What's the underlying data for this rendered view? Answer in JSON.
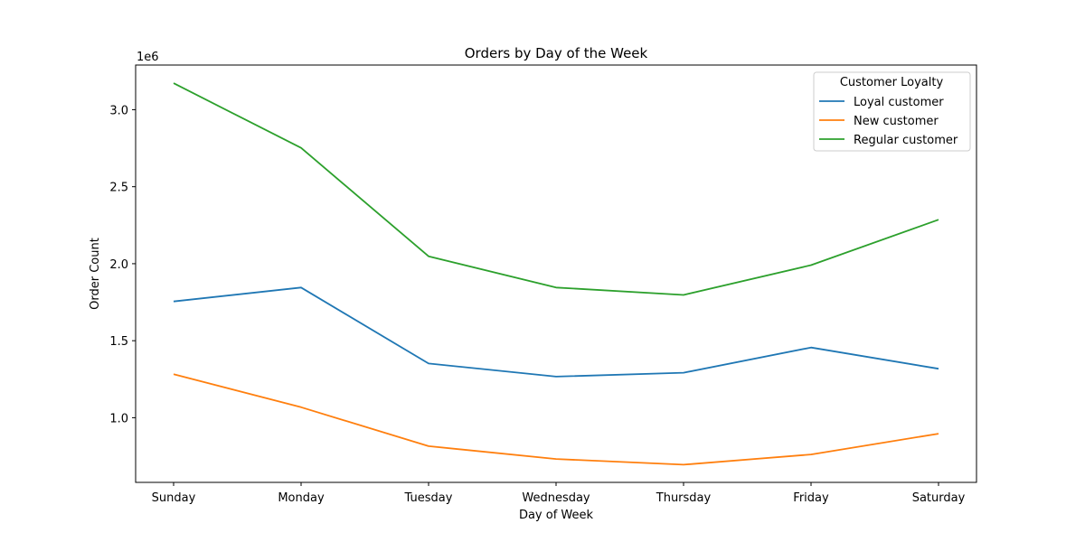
{
  "chart_data": {
    "type": "line",
    "title": "Orders by Day of the Week",
    "xlabel": "Day of Week",
    "ylabel": "Order Count",
    "y_offset_label": "1e6",
    "categories": [
      "Sunday",
      "Monday",
      "Tuesday",
      "Wednesday",
      "Thursday",
      "Friday",
      "Saturday"
    ],
    "yticks": [
      1.0,
      1.5,
      2.0,
      2.5,
      3.0
    ],
    "ytick_labels": [
      "1.0",
      "1.5",
      "2.0",
      "2.5",
      "3.0"
    ],
    "ylim": [
      0.58,
      3.29
    ],
    "legend": {
      "title": "Customer Loyalty",
      "placement": "top-right"
    },
    "grid": false,
    "series": [
      {
        "name": "Loyal customer",
        "color": "#1f77b4",
        "values": [
          1.755,
          1.845,
          1.352,
          1.267,
          1.292,
          1.456,
          1.318
        ]
      },
      {
        "name": "New customer",
        "color": "#ff7f0e",
        "values": [
          1.282,
          1.068,
          0.815,
          0.732,
          0.695,
          0.761,
          0.896
        ]
      },
      {
        "name": "Regular customer",
        "color": "#2ca02c",
        "values": [
          3.172,
          2.752,
          2.048,
          1.845,
          1.797,
          1.991,
          2.286
        ]
      }
    ]
  }
}
